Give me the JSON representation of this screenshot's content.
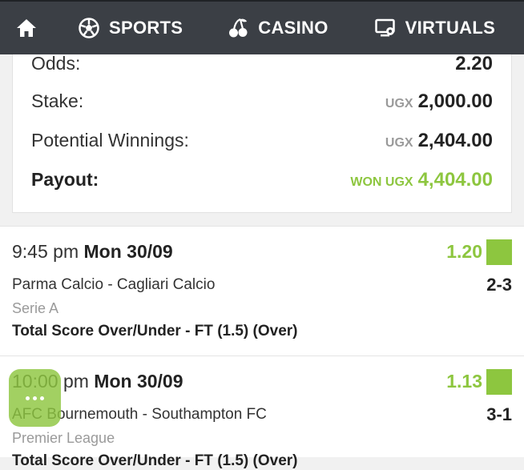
{
  "nav": {
    "home_icon": "home-icon",
    "items": [
      {
        "label": "SPORTS",
        "icon": "soccer-ball-icon"
      },
      {
        "label": "CASINO",
        "icon": "cherries-icon"
      },
      {
        "label": "VIRTUALS",
        "icon": "monitor-icon"
      }
    ]
  },
  "summary": {
    "odds_label": "Odds:",
    "odds_value": "2.20",
    "stake_label": "Stake:",
    "stake_currency": "UGX",
    "stake_value": "2,000.00",
    "winnings_label": "Potential Winnings:",
    "winnings_currency": "UGX",
    "winnings_value": "2,404.00",
    "payout_label": "Payout:",
    "payout_prefix": "WON UGX",
    "payout_value": "4,404.00"
  },
  "selections": [
    {
      "time": "9:45 pm",
      "date": "Mon 30/09",
      "odds": "1.20",
      "match": "Parma Calcio - Cagliari Calcio",
      "score": "2-3",
      "league": "Serie A",
      "market": "Total Score Over/Under - FT (1.5) (Over)"
    },
    {
      "time": "10:00 pm",
      "date": "Mon 30/09",
      "odds": "1.13",
      "match": "AFC Bournemouth - Southampton FC",
      "score": "3-1",
      "league": "Premier League",
      "market": "Total Score Over/Under - FT (1.5) (Over)"
    }
  ],
  "colors": {
    "nav_bg": "#3b3f45",
    "accent_green": "#8dc63f",
    "muted": "#9a9a9a"
  }
}
